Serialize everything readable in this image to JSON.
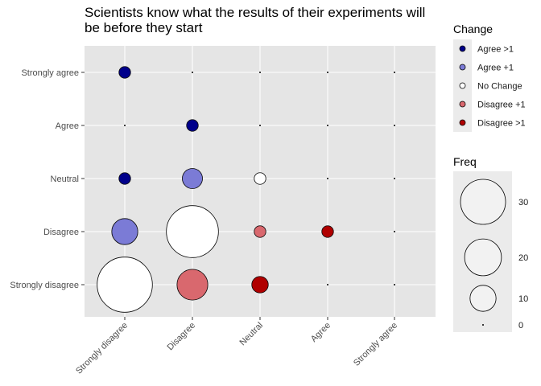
{
  "chart_data": {
    "type": "scatter",
    "title_lines": [
      "Scientists know what the results of their experiments will",
      "be before they start"
    ],
    "x_categories": [
      "Strongly disagree",
      "Disagree",
      "Neutral",
      "Agree",
      "Strongly agree"
    ],
    "y_categories": [
      "Strongly disagree",
      "Disagree",
      "Neutral",
      "Agree",
      "Strongly agree"
    ],
    "grid": true,
    "legend_placement": "right",
    "change_legend": {
      "title": "Change",
      "items": [
        {
          "label": "Agree >1",
          "color": "#00008B"
        },
        {
          "label": "Agree +1",
          "color": "#7B7BD6"
        },
        {
          "label": "No Change",
          "color": "#FFFFFF"
        },
        {
          "label": "Disagree +1",
          "color": "#D9686E"
        },
        {
          "label": "Disagree >1",
          "color": "#B00000"
        }
      ]
    },
    "freq_legend": {
      "title": "Freq",
      "breaks": [
        30,
        20,
        10,
        0
      ]
    },
    "points": [
      {
        "x": "Strongly disagree",
        "y": "Strongly agree",
        "freq": 2,
        "change": "Agree >1"
      },
      {
        "x": "Disagree",
        "y": "Strongly agree",
        "freq": 0,
        "change": "Agree >1"
      },
      {
        "x": "Neutral",
        "y": "Strongly agree",
        "freq": 0,
        "change": "Agree >1"
      },
      {
        "x": "Agree",
        "y": "Strongly agree",
        "freq": 0,
        "change": "Agree +1"
      },
      {
        "x": "Strongly agree",
        "y": "Strongly agree",
        "freq": 0,
        "change": "No Change"
      },
      {
        "x": "Strongly disagree",
        "y": "Agree",
        "freq": 0,
        "change": "Agree >1"
      },
      {
        "x": "Disagree",
        "y": "Agree",
        "freq": 2,
        "change": "Agree >1"
      },
      {
        "x": "Neutral",
        "y": "Agree",
        "freq": 0,
        "change": "Agree +1"
      },
      {
        "x": "Agree",
        "y": "Agree",
        "freq": 0,
        "change": "No Change"
      },
      {
        "x": "Strongly agree",
        "y": "Agree",
        "freq": 0,
        "change": "Disagree +1"
      },
      {
        "x": "Strongly disagree",
        "y": "Neutral",
        "freq": 2,
        "change": "Agree >1"
      },
      {
        "x": "Disagree",
        "y": "Neutral",
        "freq": 6,
        "change": "Agree +1"
      },
      {
        "x": "Neutral",
        "y": "Neutral",
        "freq": 2,
        "change": "No Change"
      },
      {
        "x": "Agree",
        "y": "Neutral",
        "freq": 0,
        "change": "Disagree +1"
      },
      {
        "x": "Strongly agree",
        "y": "Neutral",
        "freq": 0,
        "change": "Disagree >1"
      },
      {
        "x": "Strongly disagree",
        "y": "Disagree",
        "freq": 10,
        "change": "Agree +1"
      },
      {
        "x": "Disagree",
        "y": "Disagree",
        "freq": 40,
        "change": "No Change"
      },
      {
        "x": "Neutral",
        "y": "Disagree",
        "freq": 2,
        "change": "Disagree +1"
      },
      {
        "x": "Agree",
        "y": "Disagree",
        "freq": 2,
        "change": "Disagree >1"
      },
      {
        "x": "Strongly agree",
        "y": "Disagree",
        "freq": 0,
        "change": "Disagree >1"
      },
      {
        "x": "Strongly disagree",
        "y": "Strongly disagree",
        "freq": 45,
        "change": "No Change"
      },
      {
        "x": "Disagree",
        "y": "Strongly disagree",
        "freq": 14,
        "change": "Disagree +1"
      },
      {
        "x": "Neutral",
        "y": "Strongly disagree",
        "freq": 4,
        "change": "Disagree >1"
      },
      {
        "x": "Agree",
        "y": "Strongly disagree",
        "freq": 0,
        "change": "Disagree >1"
      },
      {
        "x": "Strongly agree",
        "y": "Strongly disagree",
        "freq": 0,
        "change": "Disagree >1"
      }
    ]
  }
}
